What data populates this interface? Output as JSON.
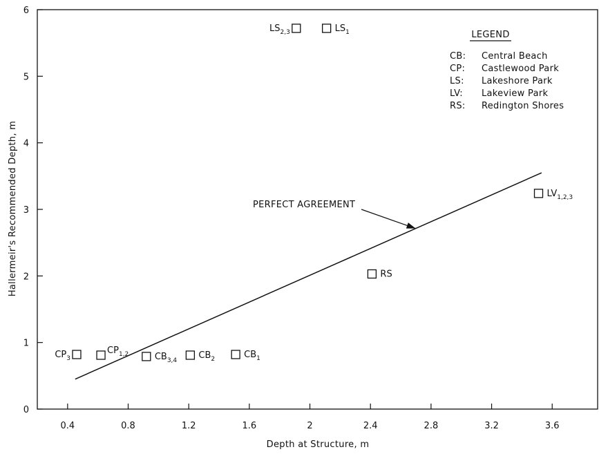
{
  "chart_data": {
    "type": "scatter",
    "xlabel": "Depth at Structure, m",
    "ylabel": "Hallermeir's Recommended Depth, m",
    "xlim": [
      0.2,
      3.9
    ],
    "ylim": [
      0,
      6
    ],
    "xticks": [
      0.4,
      0.8,
      1.2,
      1.6,
      2,
      2.4,
      2.8,
      3.2,
      3.6
    ],
    "yticks": [
      0,
      1,
      2,
      3,
      4,
      5,
      6
    ],
    "grid": false,
    "points": [
      {
        "base": "CP",
        "sub": "3",
        "x": 0.46,
        "y": 0.82,
        "label_pos": "left"
      },
      {
        "base": "CP",
        "sub": "1,2",
        "x": 0.62,
        "y": 0.81,
        "label_pos": "upper-right"
      },
      {
        "base": "CB",
        "sub": "3,4",
        "x": 0.92,
        "y": 0.79,
        "label_pos": "right"
      },
      {
        "base": "CB",
        "sub": "2",
        "x": 1.21,
        "y": 0.81,
        "label_pos": "right"
      },
      {
        "base": "CB",
        "sub": "1",
        "x": 1.51,
        "y": 0.82,
        "label_pos": "right"
      },
      {
        "base": "RS",
        "sub": "",
        "x": 2.41,
        "y": 2.03,
        "label_pos": "right"
      },
      {
        "base": "LV",
        "sub": "1,2,3",
        "x": 3.51,
        "y": 3.24,
        "label_pos": "right"
      },
      {
        "base": "LS",
        "sub": "2,3",
        "x": 1.91,
        "y": 5.72,
        "label_pos": "left"
      },
      {
        "base": "LS",
        "sub": "1",
        "x": 2.11,
        "y": 5.72,
        "label_pos": "right"
      }
    ],
    "reference_line": {
      "label": "PERFECT AGREEMENT",
      "x": [
        0.45,
        3.53
      ],
      "y": [
        0.45,
        3.55
      ]
    },
    "legend": {
      "title": "LEGEND",
      "placement": "top-right",
      "entries": [
        {
          "code": "CB:",
          "name": "Central Beach"
        },
        {
          "code": "CP:",
          "name": "Castlewood Park"
        },
        {
          "code": "LS:",
          "name": "Lakeshore Park"
        },
        {
          "code": "LV:",
          "name": "Lakeview Park"
        },
        {
          "code": "RS:",
          "name": "Redington Shores"
        }
      ]
    }
  }
}
